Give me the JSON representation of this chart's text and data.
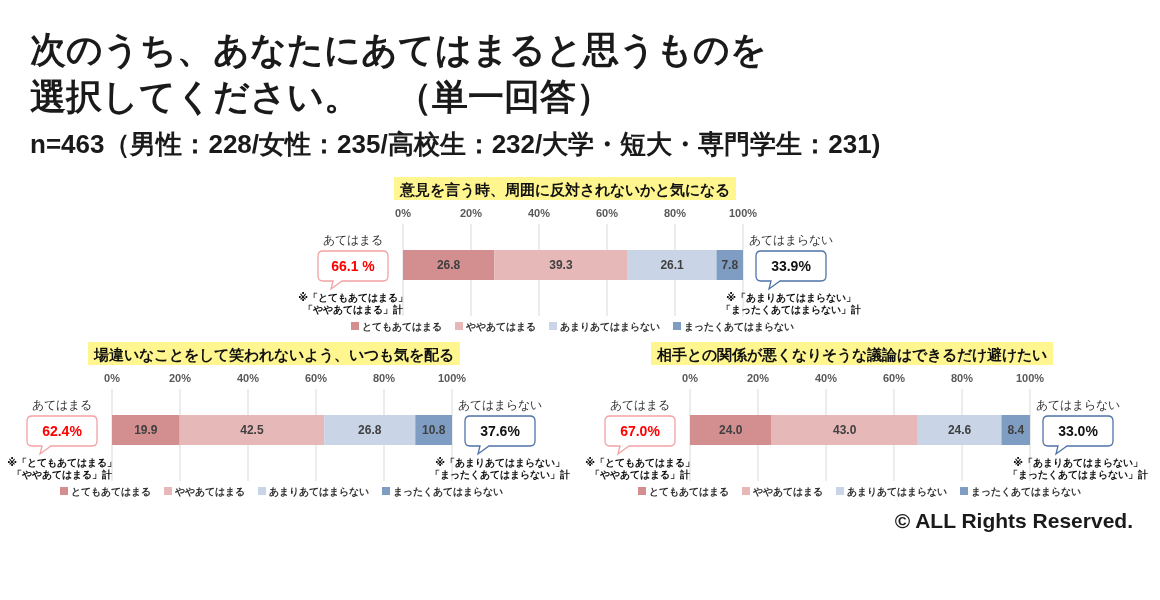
{
  "chart_data": [
    {
      "type": "other",
      "title": "次のうち、あなたにあてはまると思うものを選択してください。　（単一回答）",
      "subtitle": "n=463（男性：228/女性：235/高校生：232/大学・短大・専門学生：231)",
      "annotations": [
        "© ALL Rights Reserved."
      ]
    },
    {
      "type": "bar",
      "orientation": "horizontal",
      "stacked": true,
      "title": "意見を言う時、周囲に反対されないかと気になる",
      "categories": [
        null
      ],
      "series": [
        {
          "name": "とてもあてはまる",
          "color": "#d38e8f",
          "values": [
            26.8
          ],
          "value_labels": [
            "26.8"
          ]
        },
        {
          "name": "ややあてはまる",
          "color": "#e7b8b8",
          "values": [
            39.3
          ],
          "value_labels": [
            "39.3"
          ]
        },
        {
          "name": "あまりあてはまらない",
          "color": "#c9d5e6",
          "values": [
            26.1
          ],
          "value_labels": [
            "26.1"
          ]
        },
        {
          "name": "まったくあてはまらない",
          "color": "#7f9cc3",
          "values": [
            7.8
          ],
          "value_labels": [
            "7.8"
          ]
        }
      ],
      "xlim": [
        0,
        100
      ],
      "xticks": [
        {
          "value": 0,
          "label": "0%"
        },
        {
          "value": 20,
          "label": "20%"
        },
        {
          "value": 40,
          "label": "40%"
        },
        {
          "value": 60,
          "label": "60%"
        },
        {
          "value": 80,
          "label": "80%"
        },
        {
          "value": 100,
          "label": "100%"
        }
      ],
      "grid": "x",
      "legend": "bottom",
      "annotations": [
        "あてはまる",
        "66.1 %",
        "※「とてもあてはまる」「ややあてはまる」計",
        "あてはまらない",
        "33.9%",
        "※「あまりあてはまらない」「まったくあてはまらない」計"
      ]
    },
    {
      "type": "bar",
      "orientation": "horizontal",
      "stacked": true,
      "title": "場違いなことをして笑われないよう、いつも気を配る",
      "categories": [
        null
      ],
      "series": [
        {
          "name": "とてもあてはまる",
          "color": "#d38e8f",
          "values": [
            19.9
          ],
          "value_labels": [
            "19.9"
          ]
        },
        {
          "name": "ややあてはまる",
          "color": "#e7b8b8",
          "values": [
            42.5
          ],
          "value_labels": [
            "42.5"
          ]
        },
        {
          "name": "あまりあてはまらない",
          "color": "#c9d5e6",
          "values": [
            26.8
          ],
          "value_labels": [
            "26.8"
          ]
        },
        {
          "name": "まったくあてはまらない",
          "color": "#7f9cc3",
          "values": [
            10.8
          ],
          "value_labels": [
            "10.8"
          ]
        }
      ],
      "xlim": [
        0,
        100
      ],
      "xticks": [
        {
          "value": 0,
          "label": "0%"
        },
        {
          "value": 20,
          "label": "20%"
        },
        {
          "value": 40,
          "label": "40%"
        },
        {
          "value": 60,
          "label": "60%"
        },
        {
          "value": 80,
          "label": "80%"
        },
        {
          "value": 100,
          "label": "100%"
        }
      ],
      "grid": "x",
      "legend": "bottom",
      "annotations": [
        "あてはまる",
        "62.4%",
        "※「とてもあてはまる」「ややあてはまる」計",
        "あてはまらない",
        "37.6%",
        "※「あまりあてはまらない」「まったくあてはまらない」計"
      ]
    },
    {
      "type": "bar",
      "orientation": "horizontal",
      "stacked": true,
      "title": "相手との関係が悪くなりそうな議論はできるだけ避けたい",
      "categories": [
        null
      ],
      "series": [
        {
          "name": "とてもあてはまる",
          "color": "#d38e8f",
          "values": [
            24.0
          ],
          "value_labels": [
            "24.0"
          ]
        },
        {
          "name": "ややあてはまる",
          "color": "#e7b8b8",
          "values": [
            43.0
          ],
          "value_labels": [
            "43.0"
          ]
        },
        {
          "name": "あまりあてはまらない",
          "color": "#c9d5e6",
          "values": [
            24.6
          ],
          "value_labels": [
            "24.6"
          ]
        },
        {
          "name": "まったくあてはまらない",
          "color": "#7f9cc3",
          "values": [
            8.4
          ],
          "value_labels": [
            "8.4"
          ]
        }
      ],
      "xlim": [
        0,
        100
      ],
      "xticks": [
        {
          "value": 0,
          "label": "0%"
        },
        {
          "value": 20,
          "label": "20%"
        },
        {
          "value": 40,
          "label": "40%"
        },
        {
          "value": 60,
          "label": "60%"
        },
        {
          "value": 80,
          "label": "80%"
        },
        {
          "value": 100,
          "label": "100%"
        }
      ],
      "grid": "x",
      "legend": "bottom",
      "annotations": [
        "あてはまる",
        "67.0%",
        "※「とてもあてはまる」「ややあてはまる」計",
        "あてはまらない",
        "33.0%",
        "※「あまりあてはまらない」「まったくあてはまらない」計"
      ]
    }
  ]
}
